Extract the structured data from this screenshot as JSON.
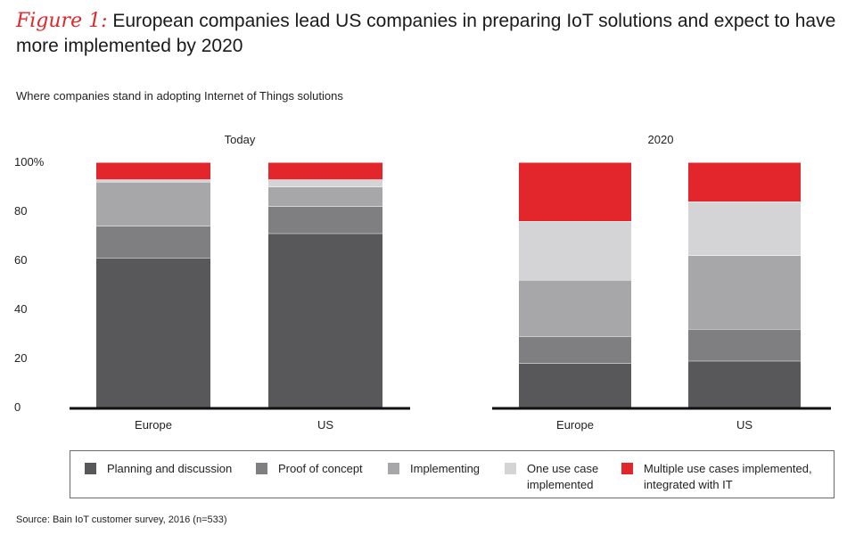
{
  "header": {
    "figure_label": "Figure 1:",
    "title": "European companies lead US companies in preparing IoT solutions and expect to have more implemented by 2020",
    "subtitle": "Where companies stand in adopting Internet of Things solutions"
  },
  "footer": {
    "source": "Source: Bain IoT customer survey, 2016 (n=533)"
  },
  "legend": [
    {
      "label_lines": [
        "Planning and discussion"
      ],
      "color": "#58585a"
    },
    {
      "label_lines": [
        "Proof of concept"
      ],
      "color": "#7f7f81"
    },
    {
      "label_lines": [
        "Implementing"
      ],
      "color": "#a7a7a9"
    },
    {
      "label_lines": [
        "One use case",
        "implemented"
      ],
      "color": "#d4d4d6"
    },
    {
      "label_lines": [
        "Multiple use cases implemented,",
        "integrated with IT"
      ],
      "color": "#e3262b"
    }
  ],
  "chart_data": [
    {
      "type": "bar",
      "stacked": true,
      "title": "Today",
      "categories": [
        "Europe",
        "US"
      ],
      "ylim": [
        0,
        100
      ],
      "yticks": [
        "0",
        "20",
        "40",
        "60",
        "80",
        "100%"
      ],
      "series": [
        {
          "name": "Planning and discussion",
          "values": [
            61,
            71
          ]
        },
        {
          "name": "Proof of concept",
          "values": [
            13,
            11
          ]
        },
        {
          "name": "Implementing",
          "values": [
            18,
            8
          ]
        },
        {
          "name": "One use case implemented",
          "values": [
            1,
            3
          ]
        },
        {
          "name": "Multiple use cases implemented, integrated with IT",
          "values": [
            7,
            7
          ]
        }
      ]
    },
    {
      "type": "bar",
      "stacked": true,
      "title": "2020",
      "categories": [
        "Europe",
        "US"
      ],
      "ylim": [
        0,
        100
      ],
      "series": [
        {
          "name": "Planning and discussion",
          "values": [
            18,
            19
          ]
        },
        {
          "name": "Proof of concept",
          "values": [
            11,
            13
          ]
        },
        {
          "name": "Implementing",
          "values": [
            23,
            30
          ]
        },
        {
          "name": "One use case implemented",
          "values": [
            24,
            22
          ]
        },
        {
          "name": "Multiple use cases implemented, integrated with IT",
          "values": [
            24,
            16
          ]
        }
      ]
    }
  ]
}
